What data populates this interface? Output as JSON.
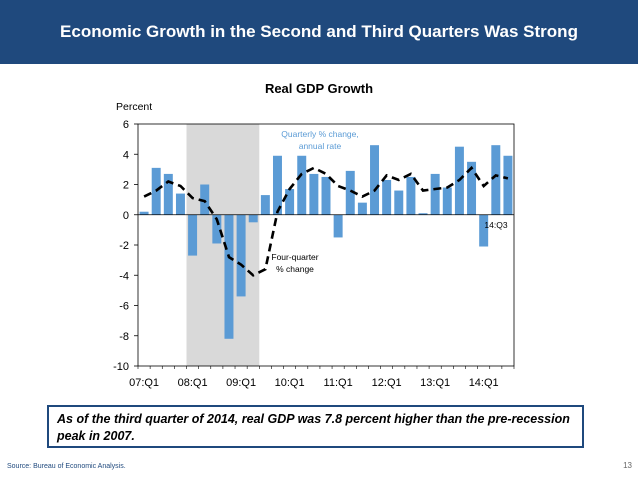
{
  "header": {
    "title": "Economic Growth in the Second and Third Quarters Was Strong"
  },
  "footer": {
    "callout": "As of the third quarter of 2014, real GDP was 7.8 percent higher than the pre-recession peak in 2007.",
    "source": "Source: Bureau of Economic Analysis.",
    "page_number": "13"
  },
  "chart_data": {
    "type": "bar",
    "title": "Real GDP Growth",
    "ylabel": "Percent",
    "xlabel": "",
    "ylim": [
      -10,
      6
    ],
    "yticks": [
      6,
      4,
      2,
      0,
      -2,
      -4,
      -6,
      -8,
      -10
    ],
    "x_tick_labels": [
      "07:Q1",
      "08:Q1",
      "09:Q1",
      "10:Q1",
      "11:Q1",
      "12:Q1",
      "13:Q1",
      "14:Q1"
    ],
    "categories": [
      "07:Q1",
      "07:Q2",
      "07:Q3",
      "07:Q4",
      "08:Q1",
      "08:Q2",
      "08:Q3",
      "08:Q4",
      "09:Q1",
      "09:Q2",
      "09:Q3",
      "09:Q4",
      "10:Q1",
      "10:Q2",
      "10:Q3",
      "10:Q4",
      "11:Q1",
      "11:Q2",
      "11:Q3",
      "11:Q4",
      "12:Q1",
      "12:Q2",
      "12:Q3",
      "12:Q4",
      "13:Q1",
      "13:Q2",
      "13:Q3",
      "13:Q4",
      "14:Q1",
      "14:Q2",
      "14:Q3"
    ],
    "recession": [
      "08:Q1",
      "09:Q2"
    ],
    "series": [
      {
        "name": "Quarterly % change, annual rate",
        "type": "bar",
        "color": "#5b9bd5",
        "values": [
          0.2,
          3.1,
          2.7,
          1.4,
          -2.7,
          2.0,
          -1.9,
          -8.2,
          -5.4,
          -0.5,
          1.3,
          3.9,
          1.7,
          3.9,
          2.7,
          2.5,
          -1.5,
          2.9,
          0.8,
          4.6,
          2.3,
          1.6,
          2.5,
          0.1,
          2.7,
          1.8,
          4.5,
          3.5,
          -2.1,
          4.6,
          3.9
        ]
      },
      {
        "name": "Four-quarter % change",
        "type": "line",
        "color": "#000000",
        "values": [
          1.2,
          1.6,
          2.2,
          1.9,
          1.1,
          0.9,
          -0.3,
          -2.8,
          -3.3,
          -4.0,
          -3.6,
          0.2,
          1.7,
          2.7,
          3.1,
          2.7,
          1.9,
          1.6,
          1.2,
          1.6,
          2.6,
          2.3,
          2.7,
          1.6,
          1.7,
          1.8,
          2.3,
          3.1,
          1.9,
          2.6,
          2.4
        ]
      }
    ],
    "annotations": {
      "bar_label_line1": "Quarterly % change,",
      "bar_label_line2": "annual rate",
      "line_label_line1": "Four-quarter",
      "line_label_line2": "% change",
      "last_point_label": "14:Q3"
    }
  }
}
